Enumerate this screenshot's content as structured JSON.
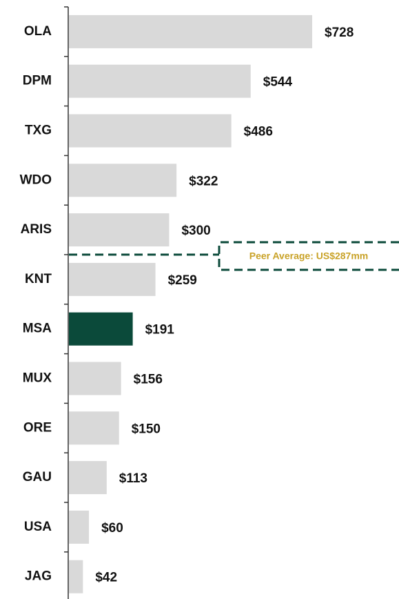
{
  "chart_data": {
    "type": "hbar",
    "categories": [
      "OLA",
      "DPM",
      "TXG",
      "WDO",
      "ARIS",
      "KNT",
      "MSA",
      "MUX",
      "ORE",
      "GAU",
      "USA",
      "JAG"
    ],
    "values": [
      728,
      544,
      486,
      322,
      300,
      259,
      191,
      156,
      150,
      113,
      60,
      42
    ],
    "value_labels": [
      "$728",
      "$544",
      "$486",
      "$322",
      "$300",
      "$259",
      "$191",
      "$156",
      "$150",
      "$113",
      "$60",
      "$42"
    ],
    "colors": [
      "#d9d9d9",
      "#d9d9d9",
      "#d9d9d9",
      "#d9d9d9",
      "#d9d9d9",
      "#d9d9d9",
      "#0b4a3a",
      "#d9d9d9",
      "#d9d9d9",
      "#d9d9d9",
      "#d9d9d9",
      "#d9d9d9"
    ],
    "average": 287,
    "average_label": "Peer Average: US$287mm",
    "average_color": "#0b4a3a",
    "average_label_color": "#c9a227"
  }
}
